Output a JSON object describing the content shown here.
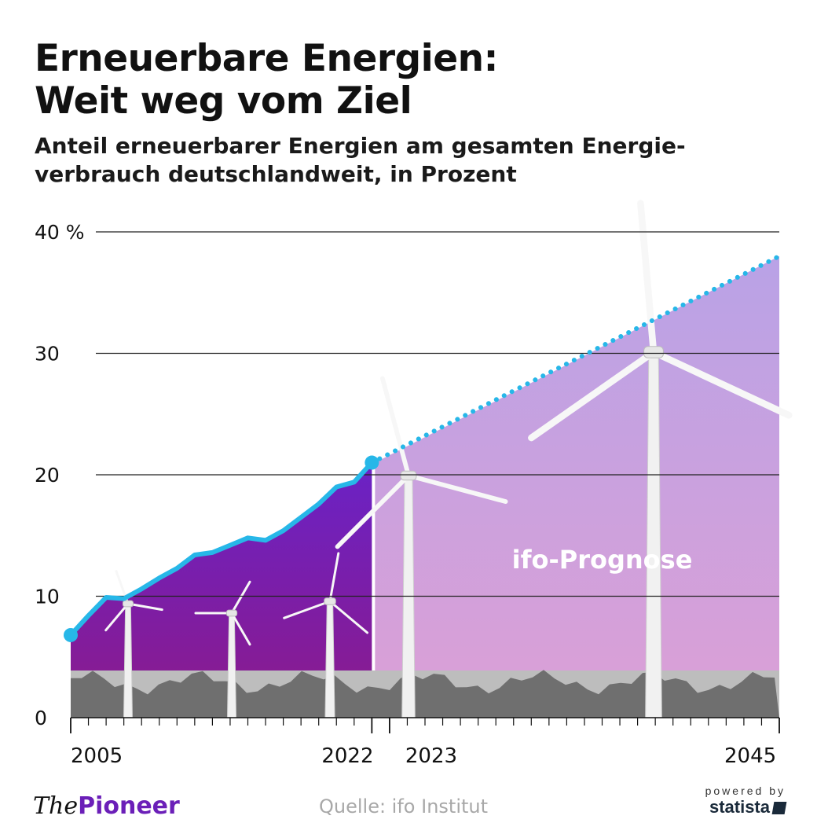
{
  "title_lines": [
    "Erneuerbare Energien:",
    "Weit weg vom Ziel"
  ],
  "subtitle_lines": [
    "Anteil erneuerbarer Energien am gesamten Energie-",
    "verbrauch deutschlandweit, in Prozent"
  ],
  "footer": {
    "logo_the": "The",
    "logo_pioneer": "Pioneer",
    "source": "Quelle: ifo Institut",
    "powered_by": "powered by",
    "statista": "statista"
  },
  "colors": {
    "line": "#27b7e8",
    "historic_top": "#6a22c6",
    "historic_bottom": "#8c1a8a",
    "forecast_top": "#b9a2e6",
    "forecast_bottom": "#dca0d6",
    "grid": "#222222",
    "ground": "#9a9a9a"
  },
  "chart_data": {
    "type": "area",
    "title": "Erneuerbare Energien: Weit weg vom Ziel",
    "ylabel": "Anteil erneuerbarer Energien am gesamten Energieverbrauch deutschlandweit, in Prozent",
    "xlim": [
      2005,
      2045
    ],
    "ylim": [
      0,
      40
    ],
    "y_ticks": [
      0,
      10,
      20,
      30,
      40
    ],
    "y_tick_labels": [
      "0",
      "10",
      "20",
      "30",
      "40 %"
    ],
    "x_tick_labels": [
      {
        "x": 2005,
        "label": "2005"
      },
      {
        "x": 2022,
        "label": "2022"
      },
      {
        "x": 2023,
        "label": "2023"
      },
      {
        "x": 2045,
        "label": "2045"
      }
    ],
    "grid": true,
    "series": [
      {
        "style": "solid",
        "x": [
          2005,
          2006,
          2007,
          2008,
          2009,
          2010,
          2011,
          2012,
          2013,
          2014,
          2015,
          2016,
          2017,
          2018,
          2019,
          2020,
          2021,
          2022
        ],
        "values": [
          6.8,
          8.4,
          9.9,
          9.8,
          10.6,
          11.5,
          12.3,
          13.4,
          13.6,
          14.2,
          14.8,
          14.6,
          15.4,
          16.5,
          17.6,
          19.0,
          19.4,
          21.0
        ]
      },
      {
        "name": "ifo-Prognose",
        "style": "dotted",
        "x": [
          2022,
          2045
        ],
        "values": [
          21.0,
          38.0
        ]
      }
    ],
    "annotations": [
      {
        "text": "ifo-Prognose",
        "x": 2035,
        "y": 12.3
      }
    ]
  }
}
